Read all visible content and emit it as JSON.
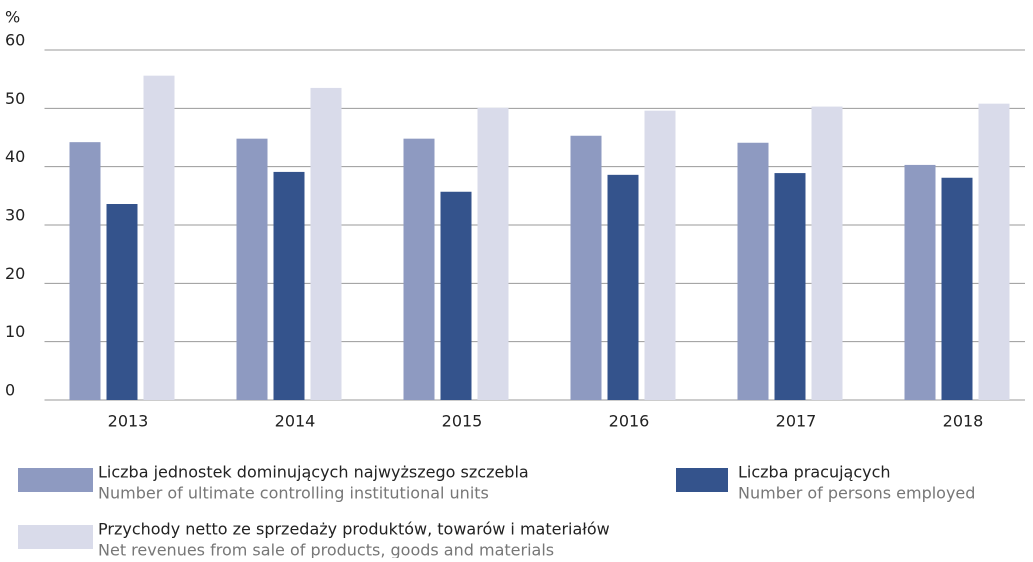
{
  "chart_data": {
    "type": "bar",
    "unit": "%",
    "categories": [
      "2013",
      "2014",
      "2015",
      "2016",
      "2017",
      "2018"
    ],
    "series": [
      {
        "name": "Liczba jednostek dominujących najwyższego szczebla",
        "name_en": "Number of ultimate controlling institutional units",
        "color": "#8e9ac1",
        "values": [
          44.2,
          44.8,
          44.8,
          45.3,
          44.1,
          40.3
        ]
      },
      {
        "name": "Liczba pracujących",
        "name_en": "Number of persons employed",
        "color": "#34538c",
        "values": [
          33.6,
          39.1,
          35.7,
          38.6,
          38.9,
          38.1
        ]
      },
      {
        "name": "Przychody netto ze sprzedaży produktów, towarów i materiałów",
        "name_en": "Net revenues from sale of products, goods and materials",
        "color": "#d9dbea",
        "values": [
          55.6,
          53.5,
          50.1,
          49.6,
          50.3,
          50.8
        ]
      }
    ],
    "ylim": [
      0,
      60
    ],
    "yticks": [
      0,
      10,
      20,
      30,
      40,
      50,
      60
    ],
    "grid": true
  }
}
